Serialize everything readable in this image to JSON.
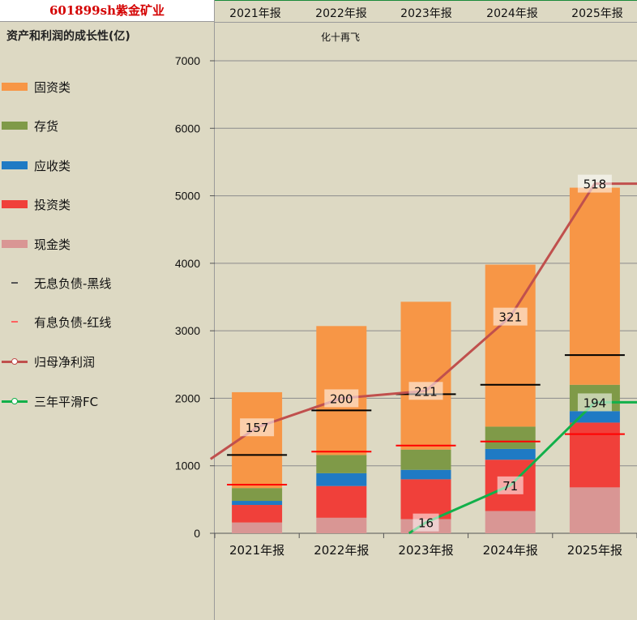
{
  "stock_title": "601899sh紫金矿业",
  "subtitle": "资产和利润的成长性(亿)",
  "annotation": "化十再飞",
  "header_years": [
    "2021年报",
    "2022年报",
    "2023年报",
    "2024年报",
    "2025年报"
  ],
  "legend": [
    {
      "label": "固资类",
      "kind": "swatch",
      "color": "#f79646"
    },
    {
      "label": "存货",
      "kind": "swatch",
      "color": "#7f9a48"
    },
    {
      "label": "应收类",
      "kind": "swatch",
      "color": "#1f7ac4"
    },
    {
      "label": "投资类",
      "kind": "swatch",
      "color": "#f0403a"
    },
    {
      "label": "现金类",
      "kind": "swatch",
      "color": "#d99694"
    },
    {
      "label": "无息负债-黑线",
      "kind": "dash",
      "color": "#000000"
    },
    {
      "label": "有息负债-红线",
      "kind": "dash",
      "color": "#ff0000"
    },
    {
      "label": "归母净利润",
      "kind": "line",
      "color": "#c0504d"
    },
    {
      "label": "三年平滑FC",
      "kind": "line",
      "color": "#12b04a"
    }
  ],
  "chart_data": {
    "type": "bar",
    "stacked": true,
    "categories": [
      "2021年报",
      "2022年报",
      "2023年报",
      "2024年报",
      "2025年报"
    ],
    "ylim": [
      0,
      7000
    ],
    "yticks": [
      0,
      1000,
      2000,
      3000,
      4000,
      5000,
      6000,
      7000
    ],
    "series": [
      {
        "name": "现金类",
        "color": "#d99694",
        "values": [
          160,
          230,
          210,
          330,
          680
        ]
      },
      {
        "name": "投资类",
        "color": "#f0403a",
        "values": [
          260,
          470,
          590,
          760,
          960
        ]
      },
      {
        "name": "应收类",
        "color": "#1f7ac4",
        "values": [
          60,
          190,
          140,
          160,
          170
        ]
      },
      {
        "name": "存货",
        "color": "#7f9a48",
        "values": [
          190,
          270,
          300,
          330,
          390
        ]
      },
      {
        "name": "固资类",
        "color": "#f79646",
        "values": [
          1420,
          1910,
          2190,
          2400,
          2920
        ]
      }
    ],
    "liabilities": [
      {
        "name": "无息负债-黑线",
        "color": "#000000",
        "values": [
          1160,
          1820,
          2060,
          2200,
          2640
        ]
      },
      {
        "name": "有息负债-红线",
        "color": "#ff0000",
        "values": [
          720,
          1210,
          1300,
          1360,
          1470
        ]
      }
    ],
    "lines": [
      {
        "name": "归母净利润",
        "color": "#c0504d",
        "labels": [
          "157",
          "200",
          "211",
          "321",
          "518"
        ],
        "label_values": [
          1570,
          2000,
          2110,
          3210,
          5180
        ],
        "path": [
          [
            -0.05,
            1100
          ],
          [
            0.5,
            1570
          ],
          [
            1.5,
            2000
          ],
          [
            2.5,
            2110
          ],
          [
            3.5,
            3210
          ],
          [
            4.5,
            5180
          ],
          [
            5.05,
            5180
          ]
        ]
      },
      {
        "name": "三年平滑FC",
        "color": "#12b04a",
        "labels": [
          "16",
          "71",
          "194"
        ],
        "label_values": [
          160,
          710,
          1940
        ],
        "label_x": [
          2.5,
          3.5,
          4.5
        ],
        "path": [
          [
            2.3,
            0
          ],
          [
            2.5,
            160
          ],
          [
            3.5,
            710
          ],
          [
            4.5,
            1940
          ],
          [
            5.05,
            1940
          ]
        ]
      }
    ]
  }
}
